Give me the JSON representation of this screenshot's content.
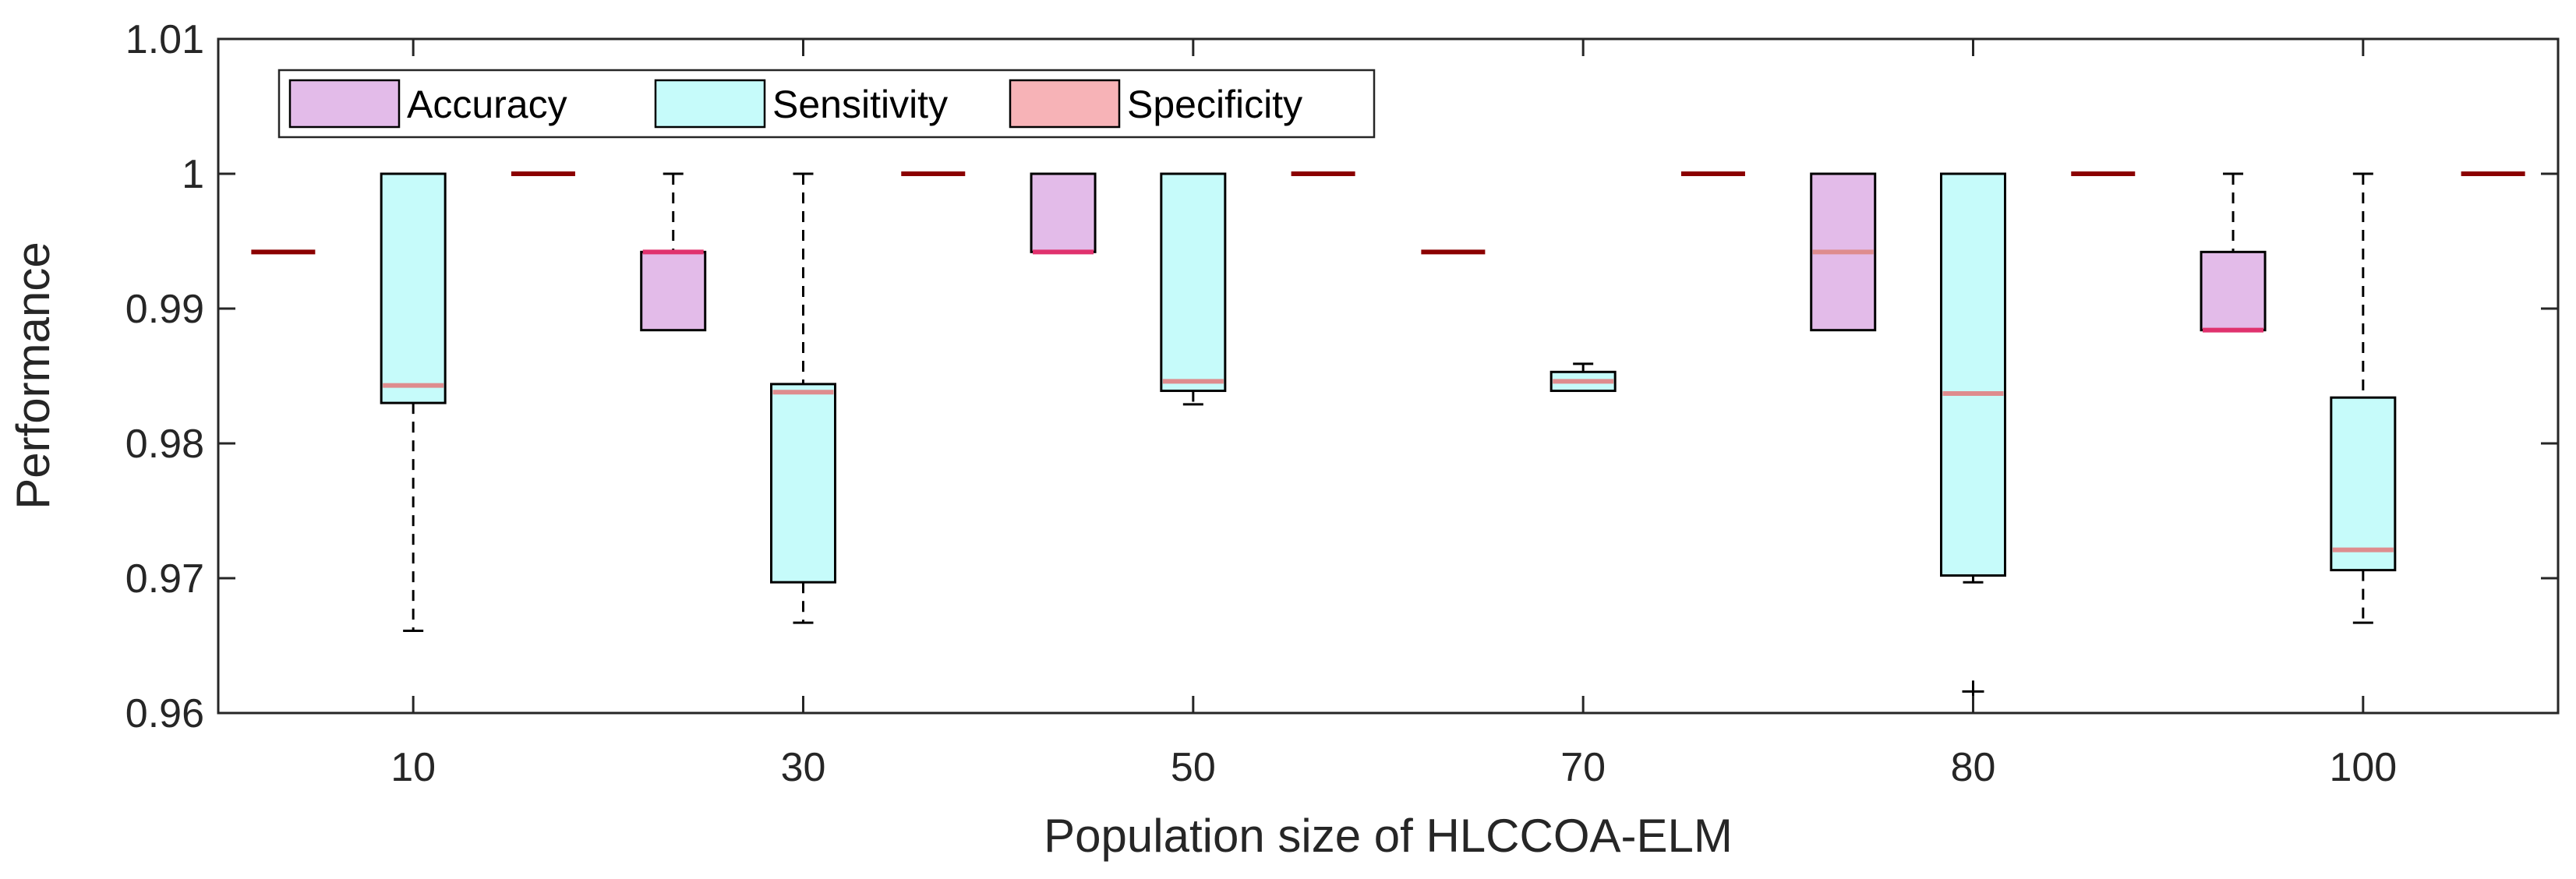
{
  "chart_data": {
    "type": "box",
    "title": "",
    "xlabel": "Population size of HLCCOA-ELM",
    "ylabel": "Performance",
    "ylim": [
      0.96,
      1.01
    ],
    "yticks": [
      0.96,
      0.97,
      0.98,
      0.99,
      1,
      1.01
    ],
    "ytick_labels": [
      "0.96",
      "0.97",
      "0.98",
      "0.99",
      "1",
      "1.01"
    ],
    "categories": [
      "10",
      "30",
      "50",
      "70",
      "80",
      "100"
    ],
    "grid": false,
    "legend_position": "top-left",
    "series": [
      {
        "name": "Accuracy",
        "fill": "#e3bbe9",
        "boxes": [
          {
            "min": 0.9942,
            "q1": 0.9942,
            "median": 0.9942,
            "q3": 0.9942,
            "max": 0.9942,
            "outliers": []
          },
          {
            "min": 0.9884,
            "q1": 0.9884,
            "median": 0.9942,
            "q3": 0.9942,
            "max": 1.0,
            "outliers": []
          },
          {
            "min": 0.9942,
            "q1": 0.9942,
            "median": 0.9942,
            "q3": 1.0,
            "max": 1.0,
            "outliers": []
          },
          {
            "min": 0.9942,
            "q1": 0.9942,
            "median": 0.9942,
            "q3": 0.9942,
            "max": 0.9942,
            "outliers": []
          },
          {
            "min": 0.9884,
            "q1": 0.9884,
            "median": 0.9942,
            "q3": 1.0,
            "max": 1.0,
            "outliers": []
          },
          {
            "min": 0.9884,
            "q1": 0.9884,
            "median": 0.9884,
            "q3": 0.9942,
            "max": 1.0,
            "outliers": []
          }
        ]
      },
      {
        "name": "Sensitivity",
        "fill": "#c6fbfa",
        "boxes": [
          {
            "min": 0.9661,
            "q1": 0.983,
            "median": 0.9843,
            "q3": 1.0,
            "max": 1.0,
            "outliers": []
          },
          {
            "min": 0.9667,
            "q1": 0.9697,
            "median": 0.9838,
            "q3": 0.9844,
            "max": 1.0,
            "outliers": []
          },
          {
            "min": 0.9829,
            "q1": 0.9839,
            "median": 0.9846,
            "q3": 1.0,
            "max": 1.0,
            "outliers": []
          },
          {
            "min": 0.9839,
            "q1": 0.9839,
            "median": 0.9846,
            "q3": 0.9853,
            "max": 0.9859,
            "outliers": []
          },
          {
            "min": 0.9697,
            "q1": 0.9702,
            "median": 0.9837,
            "q3": 1.0,
            "max": 1.0,
            "outliers": [
              0.9616
            ]
          },
          {
            "min": 0.9667,
            "q1": 0.9706,
            "median": 0.9721,
            "q3": 0.9834,
            "max": 1.0,
            "outliers": []
          }
        ]
      },
      {
        "name": "Specificity",
        "fill": "#f7b3b7",
        "boxes": [
          {
            "min": 1.0,
            "q1": 1.0,
            "median": 1.0,
            "q3": 1.0,
            "max": 1.0,
            "outliers": []
          },
          {
            "min": 1.0,
            "q1": 1.0,
            "median": 1.0,
            "q3": 1.0,
            "max": 1.0,
            "outliers": []
          },
          {
            "min": 1.0,
            "q1": 1.0,
            "median": 1.0,
            "q3": 1.0,
            "max": 1.0,
            "outliers": []
          },
          {
            "min": 1.0,
            "q1": 1.0,
            "median": 1.0,
            "q3": 1.0,
            "max": 1.0,
            "outliers": []
          },
          {
            "min": 1.0,
            "q1": 1.0,
            "median": 1.0,
            "q3": 1.0,
            "max": 1.0,
            "outliers": []
          },
          {
            "min": 1.0,
            "q1": 1.0,
            "median": 1.0,
            "q3": 1.0,
            "max": 1.0,
            "outliers": []
          }
        ]
      }
    ],
    "colors": {
      "median_line": "#de8c8e",
      "median_line_flat": "#e0326e",
      "constant_line": "#8b0000",
      "whisker": "#000000",
      "axis": "#262626"
    }
  }
}
